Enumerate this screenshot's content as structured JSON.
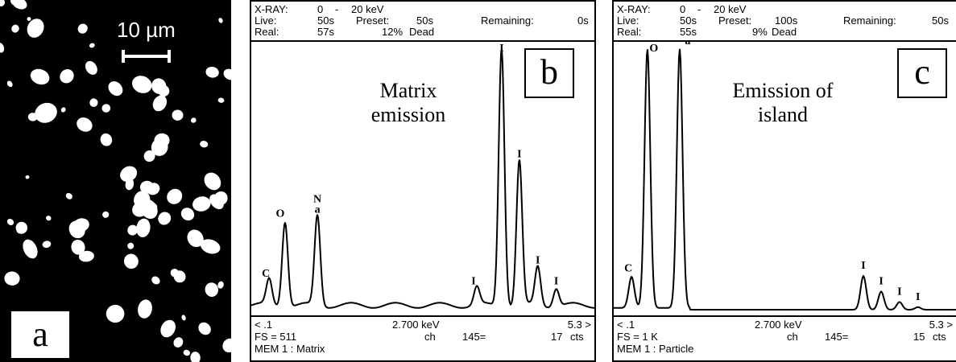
{
  "figure": {
    "panel_a": {
      "letter": "a",
      "scale_bar_label": "10 µm"
    },
    "panel_b": {
      "letter": "b",
      "header": {
        "row1": {
          "label": "X-RAY:",
          "range_start": "0",
          "dash": "-",
          "range_end": "20 keV"
        },
        "row2": {
          "live_label": "Live:",
          "live_value": "50s",
          "preset_label": "Preset:",
          "preset_value": "50s",
          "remaining_label": "Remaining:",
          "remaining_value": "0s"
        },
        "row3": {
          "real_label": "Real:",
          "real_value": "57s",
          "dead_value": "12%",
          "dead_label": "Dead"
        }
      },
      "emission_label_line1": "Matrix",
      "emission_label_line2": "emission",
      "footer": {
        "row1": {
          "left": "< .1",
          "center": "2.700 keV",
          "right": "5.3 >"
        },
        "row2": {
          "left": "FS = 511",
          "ch_label": "ch",
          "ch_value": "145=",
          "counts": "17",
          "unit": "cts"
        },
        "row3": {
          "left": "MEM 1 : Matrix"
        }
      }
    },
    "panel_c": {
      "letter": "c",
      "header": {
        "row1": {
          "label": "X-RAY:",
          "range_start": "0",
          "dash": "-",
          "range_end": "20 keV"
        },
        "row2": {
          "live_label": "Live:",
          "live_value": "50s",
          "preset_label": "Preset:",
          "preset_value": "100s",
          "remaining_label": "Remaining:",
          "remaining_value": "50s"
        },
        "row3": {
          "real_label": "Real:",
          "real_value": "55s",
          "dead_value": "9%",
          "dead_label": "Dead"
        }
      },
      "emission_label_line1": "Emission of",
      "emission_label_line2": "island",
      "footer": {
        "row1": {
          "left": "< .1",
          "center": "2.700 keV",
          "right": "5.3 >"
        },
        "row2": {
          "left": "FS = 1 K",
          "ch_label": "ch",
          "ch_value": "145=",
          "counts": "15",
          "unit": "cts"
        },
        "row3": {
          "left": "MEM 1 : Particle"
        }
      }
    }
  },
  "chart_data": [
    {
      "type": "line",
      "x_range_keV": [
        0.1,
        5.3
      ],
      "peaks": [
        {
          "element": "C",
          "energy_keV": 0.28,
          "relative_height": 0.1
        },
        {
          "element": "O",
          "energy_keV": 0.53,
          "relative_height": 0.33
        },
        {
          "element": "Na",
          "energy_keV": 1.04,
          "relative_height": 0.35
        },
        {
          "element": "I",
          "energy_keV": 3.55,
          "relative_height": 0.07
        },
        {
          "element": "I",
          "energy_keV": 3.94,
          "relative_height": 1.0
        },
        {
          "element": "I",
          "energy_keV": 4.22,
          "relative_height": 0.56
        },
        {
          "element": "I",
          "energy_keV": 4.51,
          "relative_height": 0.15
        },
        {
          "element": "I",
          "energy_keV": 4.8,
          "relative_height": 0.07
        }
      ]
    },
    {
      "type": "line",
      "x_range_keV": [
        0.1,
        5.3
      ],
      "peaks": [
        {
          "element": "C",
          "energy_keV": 0.28,
          "relative_height": 0.12
        },
        {
          "element": "O",
          "energy_keV": 0.53,
          "relative_height": 1.0
        },
        {
          "element": "Na",
          "energy_keV": 1.04,
          "relative_height": 1.0
        },
        {
          "element": "I",
          "energy_keV": 3.94,
          "relative_height": 0.13
        },
        {
          "element": "I",
          "energy_keV": 4.22,
          "relative_height": 0.07
        },
        {
          "element": "I",
          "energy_keV": 4.51,
          "relative_height": 0.03
        },
        {
          "element": "I",
          "energy_keV": 4.8,
          "relative_height": 0.01
        }
      ]
    }
  ]
}
